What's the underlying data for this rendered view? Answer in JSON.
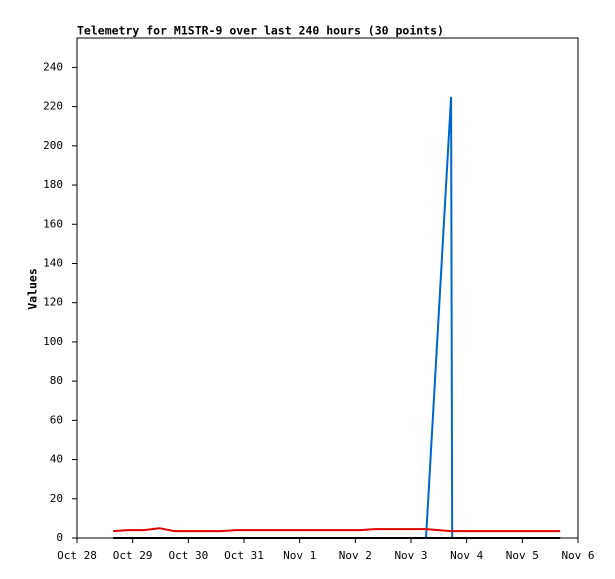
{
  "chart_data": {
    "type": "line",
    "title": "Telemetry for M1STR-9 over last 240 hours (30 points)",
    "y_label": "Values",
    "x": [
      0.65,
      0.92,
      1.2,
      1.48,
      1.75,
      2.03,
      2.31,
      2.58,
      2.86,
      3.14,
      3.41,
      3.69,
      3.97,
      4.24,
      4.52,
      4.8,
      5.08,
      5.35,
      5.63,
      5.91,
      6.27,
      6.72,
      6.74,
      7.01,
      7.28,
      7.56,
      7.84,
      8.11,
      8.39,
      8.68
    ],
    "series": [
      {
        "color": "#0066cc",
        "values": [
          0,
          0,
          0,
          0,
          0,
          0,
          0,
          0,
          0,
          0,
          0,
          0,
          0,
          0,
          0,
          0,
          0,
          0,
          0,
          0,
          0,
          225,
          0,
          0,
          0,
          0,
          0,
          0,
          0,
          0
        ]
      },
      {
        "color": "#000000",
        "values": [
          0,
          0,
          0,
          0,
          0,
          0,
          0,
          0,
          0,
          0,
          0,
          0,
          0,
          0,
          0,
          0,
          0,
          0,
          0,
          0,
          0,
          0,
          0,
          0,
          0,
          0,
          0,
          0,
          0,
          0
        ]
      },
      {
        "color": "#dd0000",
        "values": [
          3.5,
          4,
          4,
          5,
          3.5,
          3.5,
          3.5,
          3.5,
          4,
          4,
          4,
          4,
          4,
          4,
          4,
          4,
          4,
          4.5,
          4.5,
          4.5,
          4.5,
          3.5,
          3.5,
          3.5,
          3.5,
          3.5,
          3.5,
          3.5,
          3.5,
          3.5
        ]
      }
    ],
    "xlim": [
      0,
      9
    ],
    "xticks": [
      {
        "value": 0,
        "label": "Oct 28"
      },
      {
        "value": 1,
        "label": "Oct 29"
      },
      {
        "value": 2,
        "label": "Oct 30"
      },
      {
        "value": 3,
        "label": "Oct 31"
      },
      {
        "value": 4,
        "label": "Nov 1"
      },
      {
        "value": 5,
        "label": "Nov 2"
      },
      {
        "value": 6,
        "label": "Nov 3"
      },
      {
        "value": 7,
        "label": "Nov 4"
      },
      {
        "value": 8,
        "label": "Nov 5"
      },
      {
        "value": 9,
        "label": "Nov 6"
      }
    ],
    "ylim": [
      0,
      255
    ],
    "yticks": [
      0,
      20,
      40,
      60,
      80,
      100,
      120,
      140,
      160,
      180,
      200,
      220,
      240
    ]
  }
}
